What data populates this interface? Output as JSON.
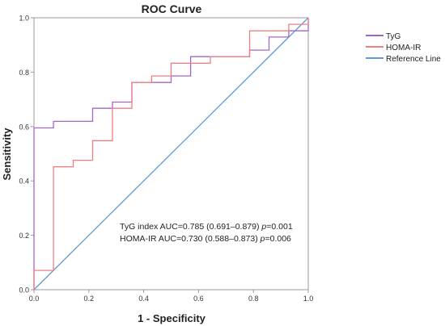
{
  "chart_data": {
    "type": "line",
    "title": "ROC Curve",
    "xlabel": "1 - Specificity",
    "ylabel": "Sensitivity",
    "xlim": [
      0,
      1
    ],
    "ylim": [
      0,
      1
    ],
    "x_ticks": [
      "0.0",
      "0.2",
      "0.4",
      "0.6",
      "0.8",
      "1.0"
    ],
    "y_ticks": [
      "0.0",
      "0.2",
      "0.4",
      "0.6",
      "0.8",
      "1.0"
    ],
    "grid": false,
    "legend_position": "right",
    "series": [
      {
        "name": "TyG",
        "color": "#a066cc",
        "points": [
          [
            0,
            0
          ],
          [
            0,
            0.595
          ],
          [
            0.071,
            0.595
          ],
          [
            0.071,
            0.619
          ],
          [
            0.214,
            0.619
          ],
          [
            0.214,
            0.667
          ],
          [
            0.286,
            0.667
          ],
          [
            0.286,
            0.69
          ],
          [
            0.357,
            0.69
          ],
          [
            0.357,
            0.762
          ],
          [
            0.5,
            0.762
          ],
          [
            0.5,
            0.786
          ],
          [
            0.571,
            0.786
          ],
          [
            0.571,
            0.857
          ],
          [
            0.786,
            0.857
          ],
          [
            0.786,
            0.881
          ],
          [
            0.857,
            0.881
          ],
          [
            0.857,
            0.929
          ],
          [
            0.929,
            0.929
          ],
          [
            0.929,
            0.952
          ],
          [
            1,
            0.952
          ],
          [
            1,
            1
          ]
        ]
      },
      {
        "name": "HOMA-IR",
        "color": "#f08080",
        "points": [
          [
            0,
            0
          ],
          [
            0,
            0.071
          ],
          [
            0.071,
            0.071
          ],
          [
            0.071,
            0.452
          ],
          [
            0.143,
            0.452
          ],
          [
            0.143,
            0.476
          ],
          [
            0.214,
            0.476
          ],
          [
            0.214,
            0.548
          ],
          [
            0.286,
            0.548
          ],
          [
            0.286,
            0.667
          ],
          [
            0.357,
            0.667
          ],
          [
            0.357,
            0.762
          ],
          [
            0.429,
            0.762
          ],
          [
            0.429,
            0.786
          ],
          [
            0.5,
            0.786
          ],
          [
            0.5,
            0.833
          ],
          [
            0.643,
            0.833
          ],
          [
            0.643,
            0.857
          ],
          [
            0.786,
            0.857
          ],
          [
            0.786,
            0.952
          ],
          [
            0.929,
            0.952
          ],
          [
            0.929,
            0.976
          ],
          [
            1,
            0.976
          ],
          [
            1,
            1
          ]
        ]
      },
      {
        "name": "Reference Line",
        "color": "#5b9bd5",
        "points": [
          [
            0,
            0
          ],
          [
            1,
            1
          ]
        ]
      }
    ],
    "annotations": [
      {
        "pre": "TyG index AUC=0.785 (0.691–0.879) ",
        "p": "p",
        "post": "=0.001"
      },
      {
        "pre": "HOMA-IR AUC=0.730 (0.588–0.873) ",
        "p": "p",
        "post": "=0.006"
      }
    ]
  }
}
